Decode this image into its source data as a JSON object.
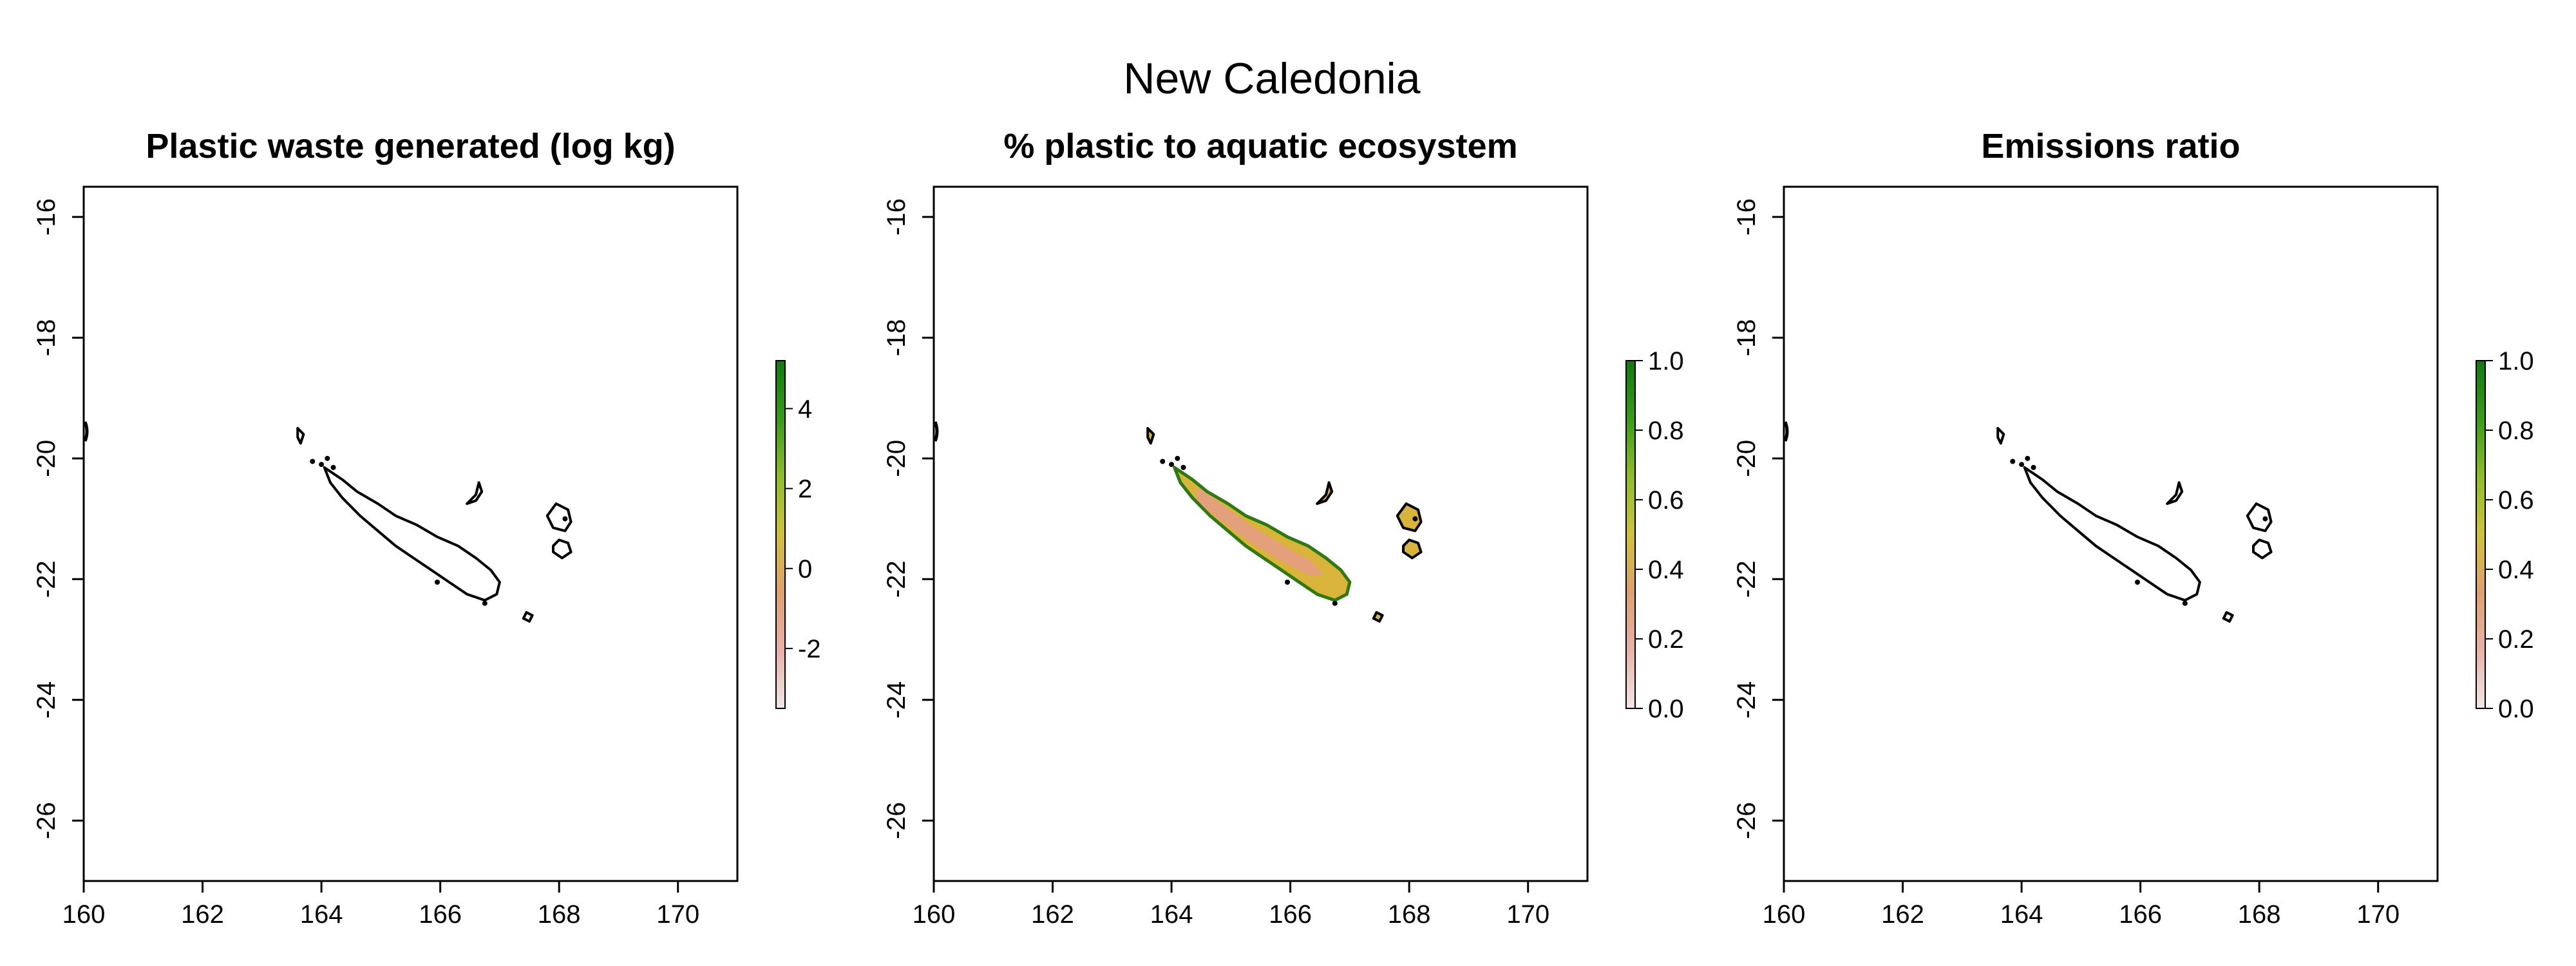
{
  "figure": {
    "title": "New Caledonia"
  },
  "colors": {
    "scale": [
      "#f2e6e6",
      "#e8b2a8",
      "#dfa070",
      "#cfc23a",
      "#8fbd2a",
      "#3a9a1a",
      "#0f7a0f"
    ],
    "fill_land": "#d8b43a",
    "fill_inland": "#e4a07a",
    "outline": "#000000"
  },
  "chart_data": [
    {
      "type": "heatmap",
      "title": "Plastic waste generated (log kg)",
      "xlim": [
        160,
        171
      ],
      "ylim": [
        -27,
        -15.5
      ],
      "x_ticks": [
        "160",
        "162",
        "164",
        "166",
        "168",
        "170"
      ],
      "y_ticks": [
        "-16",
        "-18",
        "-20",
        "-22",
        "-24",
        "-26"
      ],
      "colorbar": {
        "range": [
          -3.5,
          5.2
        ],
        "ticks": [
          "-2",
          "0",
          "2",
          "4"
        ]
      },
      "filled": false
    },
    {
      "type": "heatmap",
      "title": "% plastic to aquatic ecosystem",
      "xlim": [
        160,
        171
      ],
      "ylim": [
        -27,
        -15.5
      ],
      "x_ticks": [
        "160",
        "162",
        "164",
        "166",
        "168",
        "170"
      ],
      "y_ticks": [
        "-16",
        "-18",
        "-20",
        "-22",
        "-24",
        "-26"
      ],
      "colorbar": {
        "range": [
          0,
          1
        ],
        "ticks": [
          "0.0",
          "0.2",
          "0.4",
          "0.6",
          "0.8",
          "1.0"
        ]
      },
      "filled": true
    },
    {
      "type": "heatmap",
      "title": "Emissions ratio",
      "xlim": [
        160,
        171
      ],
      "ylim": [
        -27,
        -15.5
      ],
      "x_ticks": [
        "160",
        "162",
        "164",
        "166",
        "168",
        "170"
      ],
      "y_ticks": [
        "-16",
        "-18",
        "-20",
        "-22",
        "-24",
        "-26"
      ],
      "colorbar": {
        "range": [
          0,
          1
        ],
        "ticks": [
          "0.0",
          "0.2",
          "0.4",
          "0.6",
          "0.8",
          "1.0"
        ]
      },
      "filled": false
    }
  ]
}
